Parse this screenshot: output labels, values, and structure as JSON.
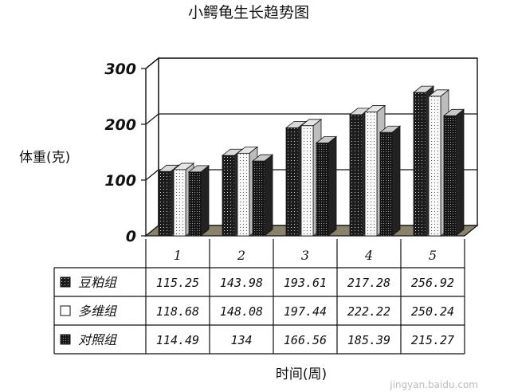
{
  "chart_data": {
    "type": "bar",
    "title": "小鳄龟生长趋势图",
    "ylabel": "体重(克)",
    "xlabel": "时间(周)",
    "categories": [
      "1",
      "2",
      "3",
      "4",
      "5"
    ],
    "yticks": [
      "0",
      "100",
      "200",
      "300"
    ],
    "ylim": [
      0,
      300
    ],
    "grid": true,
    "three_d": true,
    "legend": "data-table-below",
    "series": [
      {
        "name": "豆粕组",
        "pattern": "dark-dotted",
        "values": [
          115.25,
          143.98,
          193.61,
          217.28,
          256.92
        ],
        "labels": [
          "115.25",
          "143.98",
          "193.61",
          "217.28",
          "256.92"
        ]
      },
      {
        "name": "多维组",
        "pattern": "light-dotted",
        "values": [
          118.68,
          148.08,
          197.44,
          222.22,
          250.24
        ],
        "labels": [
          "118.68",
          "148.08",
          "197.44",
          "222.22",
          "250.24"
        ]
      },
      {
        "name": "对照组",
        "pattern": "dark-dense",
        "values": [
          114.49,
          134,
          166.56,
          185.39,
          215.27
        ],
        "labels": [
          "114.49",
          "134",
          "166.56",
          "185.39",
          "215.27"
        ]
      }
    ],
    "colors": {
      "dark": "#1a1a1a",
      "light": "#f4f4f4",
      "floor": "#8a826c"
    }
  },
  "watermark": "jingyan.baidu.com"
}
